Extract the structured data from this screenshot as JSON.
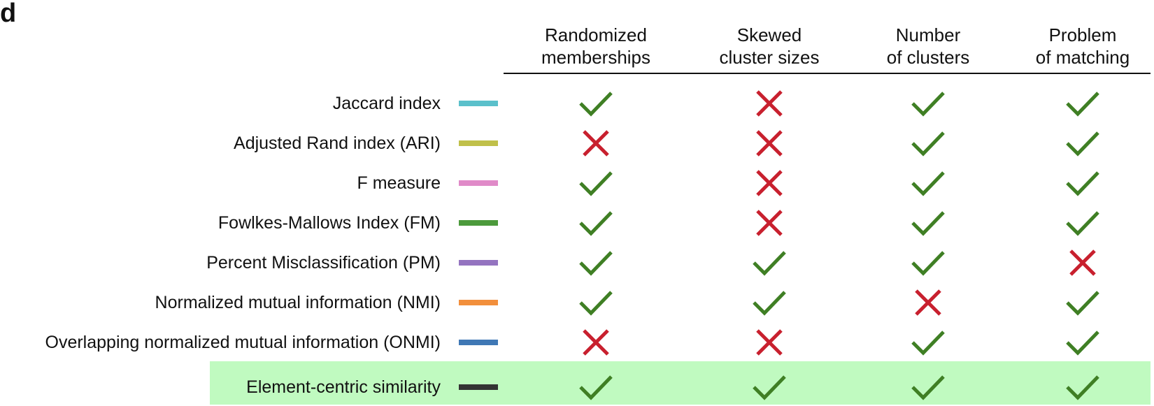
{
  "panel_label": "d",
  "chart_data": {
    "type": "table",
    "title": "",
    "columns": [
      {
        "line1": "Randomized",
        "line2": "memberships"
      },
      {
        "line1": "Skewed",
        "line2": "cluster sizes"
      },
      {
        "line1": "Number",
        "line2": "of clusters"
      },
      {
        "line1": "Problem",
        "line2": "of matching"
      }
    ],
    "rows": [
      {
        "label": "Jaccard index",
        "color": "#5bc0cb",
        "values": [
          true,
          false,
          true,
          true
        ],
        "highlight": false
      },
      {
        "label": "Adjusted Rand index (ARI)",
        "color": "#c0c04a",
        "values": [
          false,
          false,
          true,
          true
        ],
        "highlight": false
      },
      {
        "label": "F measure",
        "color": "#e08ac8",
        "values": [
          true,
          false,
          true,
          true
        ],
        "highlight": false
      },
      {
        "label": "Fowlkes-Mallows Index (FM)",
        "color": "#4c9a3c",
        "values": [
          true,
          false,
          true,
          true
        ],
        "highlight": false
      },
      {
        "label": "Percent Misclassification (PM)",
        "color": "#9474c0",
        "values": [
          true,
          true,
          true,
          false
        ],
        "highlight": false
      },
      {
        "label": "Normalized mutual information (NMI)",
        "color": "#f28f3c",
        "values": [
          true,
          true,
          false,
          true
        ],
        "highlight": false
      },
      {
        "label": "Overlapping normalized mutual information (ONMI)",
        "color": "#3f78b5",
        "values": [
          false,
          false,
          true,
          true
        ],
        "highlight": false
      },
      {
        "label": "Element-centric similarity",
        "color": "#333333",
        "values": [
          true,
          true,
          true,
          true
        ],
        "highlight": true
      }
    ],
    "highlight_color": "#c0fac0",
    "check_color": "#3f7f24",
    "cross_color": "#c8202e"
  }
}
